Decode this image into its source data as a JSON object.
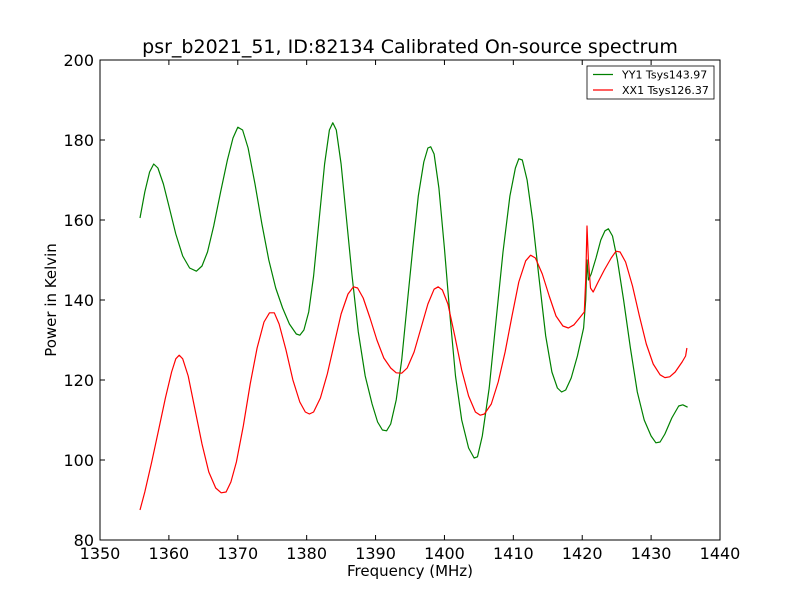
{
  "chart_data": {
    "type": "line",
    "title": "psr_b2021_51, ID:82134 Calibrated On-source spectrum",
    "xlabel": "Frequency (MHz)",
    "ylabel": "Power in Kelvin",
    "xlim": [
      1350,
      1440
    ],
    "ylim": [
      80,
      200
    ],
    "x_ticks": [
      "1350",
      "1360",
      "1370",
      "1380",
      "1390",
      "1400",
      "1410",
      "1420",
      "1430",
      "1440"
    ],
    "y_ticks": [
      "80",
      "100",
      "120",
      "140",
      "160",
      "180",
      "200"
    ],
    "grid": false,
    "legend_position": "top-right",
    "series": [
      {
        "name": "YY1 Tsys143.97",
        "color": "#008000",
        "points": [
          [
            1355.8,
            160.5
          ],
          [
            1356.5,
            167.0
          ],
          [
            1357.2,
            172.0
          ],
          [
            1357.8,
            174.0
          ],
          [
            1358.4,
            173.0
          ],
          [
            1359.2,
            169.0
          ],
          [
            1360.0,
            163.5
          ],
          [
            1361.0,
            156.5
          ],
          [
            1362.0,
            151.0
          ],
          [
            1363.0,
            148.0
          ],
          [
            1364.0,
            147.2
          ],
          [
            1364.8,
            148.5
          ],
          [
            1365.6,
            152.0
          ],
          [
            1366.5,
            158.5
          ],
          [
            1367.5,
            167.0
          ],
          [
            1368.5,
            175.0
          ],
          [
            1369.3,
            180.5
          ],
          [
            1370.0,
            183.2
          ],
          [
            1370.7,
            182.5
          ],
          [
            1371.5,
            178.0
          ],
          [
            1372.5,
            169.0
          ],
          [
            1373.5,
            159.0
          ],
          [
            1374.5,
            150.0
          ],
          [
            1375.5,
            143.0
          ],
          [
            1376.5,
            138.0
          ],
          [
            1377.5,
            134.0
          ],
          [
            1378.5,
            131.5
          ],
          [
            1379.0,
            131.2
          ],
          [
            1379.6,
            132.5
          ],
          [
            1380.3,
            137.0
          ],
          [
            1381.0,
            146.0
          ],
          [
            1381.8,
            160.0
          ],
          [
            1382.6,
            174.0
          ],
          [
            1383.3,
            182.5
          ],
          [
            1383.8,
            184.3
          ],
          [
            1384.3,
            182.5
          ],
          [
            1385.0,
            174.0
          ],
          [
            1385.8,
            160.0
          ],
          [
            1386.6,
            146.0
          ],
          [
            1387.5,
            132.0
          ],
          [
            1388.5,
            121.0
          ],
          [
            1389.5,
            114.0
          ],
          [
            1390.3,
            109.5
          ],
          [
            1391.0,
            107.5
          ],
          [
            1391.6,
            107.3
          ],
          [
            1392.2,
            109.0
          ],
          [
            1393.0,
            115.0
          ],
          [
            1393.8,
            125.0
          ],
          [
            1394.6,
            139.0
          ],
          [
            1395.4,
            153.0
          ],
          [
            1396.2,
            166.0
          ],
          [
            1397.0,
            174.5
          ],
          [
            1397.6,
            178.0
          ],
          [
            1398.0,
            178.3
          ],
          [
            1398.5,
            176.5
          ],
          [
            1399.2,
            168.0
          ],
          [
            1400.0,
            153.0
          ],
          [
            1400.8,
            136.0
          ],
          [
            1401.6,
            121.0
          ],
          [
            1402.5,
            110.0
          ],
          [
            1403.5,
            103.0
          ],
          [
            1404.3,
            100.5
          ],
          [
            1404.8,
            100.8
          ],
          [
            1405.5,
            106.0
          ],
          [
            1406.5,
            118.0
          ],
          [
            1407.5,
            135.0
          ],
          [
            1408.5,
            152.0
          ],
          [
            1409.5,
            166.0
          ],
          [
            1410.3,
            173.0
          ],
          [
            1410.8,
            175.3
          ],
          [
            1411.3,
            175.0
          ],
          [
            1412.0,
            170.0
          ],
          [
            1412.8,
            160.0
          ],
          [
            1413.7,
            146.0
          ],
          [
            1414.7,
            131.0
          ],
          [
            1415.6,
            122.0
          ],
          [
            1416.4,
            118.0
          ],
          [
            1417.0,
            117.0
          ],
          [
            1417.6,
            117.5
          ],
          [
            1418.4,
            120.5
          ],
          [
            1419.3,
            126.0
          ],
          [
            1420.2,
            133.0
          ],
          [
            1420.5,
            140.0
          ],
          [
            1420.7,
            150.0
          ],
          [
            1420.9,
            145.0
          ],
          [
            1421.3,
            146.5
          ],
          [
            1422.0,
            150.5
          ],
          [
            1422.7,
            155.0
          ],
          [
            1423.3,
            157.3
          ],
          [
            1423.8,
            157.8
          ],
          [
            1424.4,
            156.0
          ],
          [
            1425.1,
            150.0
          ],
          [
            1426.0,
            140.0
          ],
          [
            1427.0,
            128.0
          ],
          [
            1428.0,
            117.0
          ],
          [
            1429.0,
            110.0
          ],
          [
            1430.0,
            106.0
          ],
          [
            1430.7,
            104.3
          ],
          [
            1431.3,
            104.5
          ],
          [
            1432.0,
            106.5
          ],
          [
            1433.0,
            110.5
          ],
          [
            1434.0,
            113.5
          ],
          [
            1434.6,
            113.8
          ],
          [
            1435.3,
            113.2
          ]
        ]
      },
      {
        "name": "XX1 Tsys126.37",
        "color": "#ff0000",
        "points": [
          [
            1355.8,
            87.5
          ],
          [
            1356.5,
            92.0
          ],
          [
            1357.5,
            99.5
          ],
          [
            1358.5,
            107.5
          ],
          [
            1359.5,
            115.5
          ],
          [
            1360.4,
            122.0
          ],
          [
            1361.0,
            125.3
          ],
          [
            1361.5,
            126.2
          ],
          [
            1362.0,
            125.3
          ],
          [
            1362.8,
            121.0
          ],
          [
            1363.8,
            112.5
          ],
          [
            1364.8,
            104.0
          ],
          [
            1365.8,
            97.0
          ],
          [
            1366.8,
            93.0
          ],
          [
            1367.6,
            91.8
          ],
          [
            1368.3,
            92.0
          ],
          [
            1369.0,
            94.5
          ],
          [
            1369.8,
            99.5
          ],
          [
            1370.8,
            108.5
          ],
          [
            1371.8,
            119.0
          ],
          [
            1372.8,
            128.0
          ],
          [
            1373.8,
            134.5
          ],
          [
            1374.6,
            136.8
          ],
          [
            1375.3,
            136.8
          ],
          [
            1376.0,
            134.0
          ],
          [
            1377.0,
            127.5
          ],
          [
            1378.0,
            120.0
          ],
          [
            1379.0,
            114.5
          ],
          [
            1379.8,
            112.0
          ],
          [
            1380.4,
            111.5
          ],
          [
            1381.0,
            112.0
          ],
          [
            1382.0,
            115.5
          ],
          [
            1383.0,
            121.5
          ],
          [
            1384.0,
            129.0
          ],
          [
            1385.0,
            136.5
          ],
          [
            1386.0,
            141.5
          ],
          [
            1386.8,
            143.3
          ],
          [
            1387.4,
            143.0
          ],
          [
            1388.2,
            140.5
          ],
          [
            1389.2,
            135.5
          ],
          [
            1390.2,
            130.0
          ],
          [
            1391.2,
            125.5
          ],
          [
            1392.2,
            123.0
          ],
          [
            1393.0,
            121.8
          ],
          [
            1393.8,
            121.7
          ],
          [
            1394.6,
            123.0
          ],
          [
            1395.6,
            127.0
          ],
          [
            1396.6,
            133.0
          ],
          [
            1397.6,
            139.0
          ],
          [
            1398.5,
            142.7
          ],
          [
            1399.1,
            143.3
          ],
          [
            1399.7,
            142.5
          ],
          [
            1400.5,
            139.0
          ],
          [
            1401.5,
            131.0
          ],
          [
            1402.5,
            122.5
          ],
          [
            1403.5,
            116.0
          ],
          [
            1404.5,
            112.0
          ],
          [
            1405.2,
            111.2
          ],
          [
            1405.8,
            111.5
          ],
          [
            1406.8,
            114.0
          ],
          [
            1407.8,
            119.5
          ],
          [
            1408.8,
            127.0
          ],
          [
            1409.8,
            136.0
          ],
          [
            1410.8,
            144.5
          ],
          [
            1411.8,
            149.8
          ],
          [
            1412.5,
            151.2
          ],
          [
            1413.2,
            150.5
          ],
          [
            1414.2,
            146.5
          ],
          [
            1415.2,
            141.0
          ],
          [
            1416.2,
            136.0
          ],
          [
            1417.2,
            133.5
          ],
          [
            1418.0,
            133.0
          ],
          [
            1418.8,
            133.8
          ],
          [
            1419.6,
            135.5
          ],
          [
            1420.3,
            137.0
          ],
          [
            1420.5,
            145.0
          ],
          [
            1420.7,
            158.5
          ],
          [
            1420.9,
            150.0
          ],
          [
            1421.2,
            143.0
          ],
          [
            1421.6,
            142.0
          ],
          [
            1422.3,
            144.5
          ],
          [
            1423.2,
            147.5
          ],
          [
            1424.2,
            150.5
          ],
          [
            1424.9,
            152.2
          ],
          [
            1425.5,
            152.0
          ],
          [
            1426.3,
            149.5
          ],
          [
            1427.3,
            143.5
          ],
          [
            1428.3,
            136.0
          ],
          [
            1429.3,
            129.0
          ],
          [
            1430.3,
            124.0
          ],
          [
            1431.3,
            121.3
          ],
          [
            1432.0,
            120.6
          ],
          [
            1432.7,
            120.8
          ],
          [
            1433.5,
            122.0
          ],
          [
            1434.5,
            124.5
          ],
          [
            1435.0,
            126.0
          ],
          [
            1435.2,
            128.0
          ]
        ]
      }
    ]
  }
}
